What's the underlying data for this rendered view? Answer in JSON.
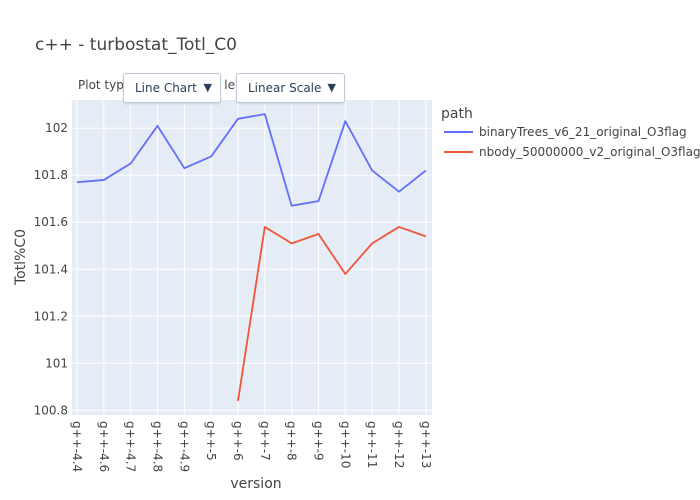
{
  "controls": {
    "plot_type_label": "Plot type:",
    "scale_label": "Scale:",
    "plot_type_value": "Line Chart",
    "scale_value": "Linear Scale",
    "caret_glyph": "▼"
  },
  "chart_data": {
    "type": "line",
    "title": "c++ - turbostat_Totl_C0",
    "xlabel": "version",
    "ylabel": "Totl%C0",
    "legend_title": "path",
    "legend_position": "right",
    "categories": [
      "g++-4.4",
      "g++-4.6",
      "g++-4.7",
      "g++-4.8",
      "g++-4.9",
      "g++-5",
      "g++-6",
      "g++-7",
      "g++-8",
      "g++-9",
      "g++-10",
      "g++-11",
      "g++-12",
      "g++-13"
    ],
    "ylim": [
      100.78,
      102.12
    ],
    "yticks": [
      100.8,
      101,
      101.2,
      101.4,
      101.6,
      101.8,
      102
    ],
    "ytick_labels": [
      "100.8",
      "101",
      "101.2",
      "101.4",
      "101.6",
      "101.8",
      "102"
    ],
    "grid": true,
    "series": [
      {
        "name": "binaryTrees_v6_21_original_O3flag",
        "color": "#636efa",
        "values": [
          101.77,
          101.78,
          101.85,
          102.01,
          101.83,
          101.88,
          102.04,
          102.06,
          101.67,
          101.69,
          102.03,
          101.82,
          101.73,
          101.82
        ]
      },
      {
        "name": "nbody_50000000_v2_original_O3flag",
        "color": "#ef553b",
        "values": [
          null,
          null,
          null,
          null,
          null,
          null,
          100.84,
          101.58,
          101.51,
          101.55,
          101.38,
          101.51,
          101.58,
          101.54
        ]
      }
    ]
  }
}
